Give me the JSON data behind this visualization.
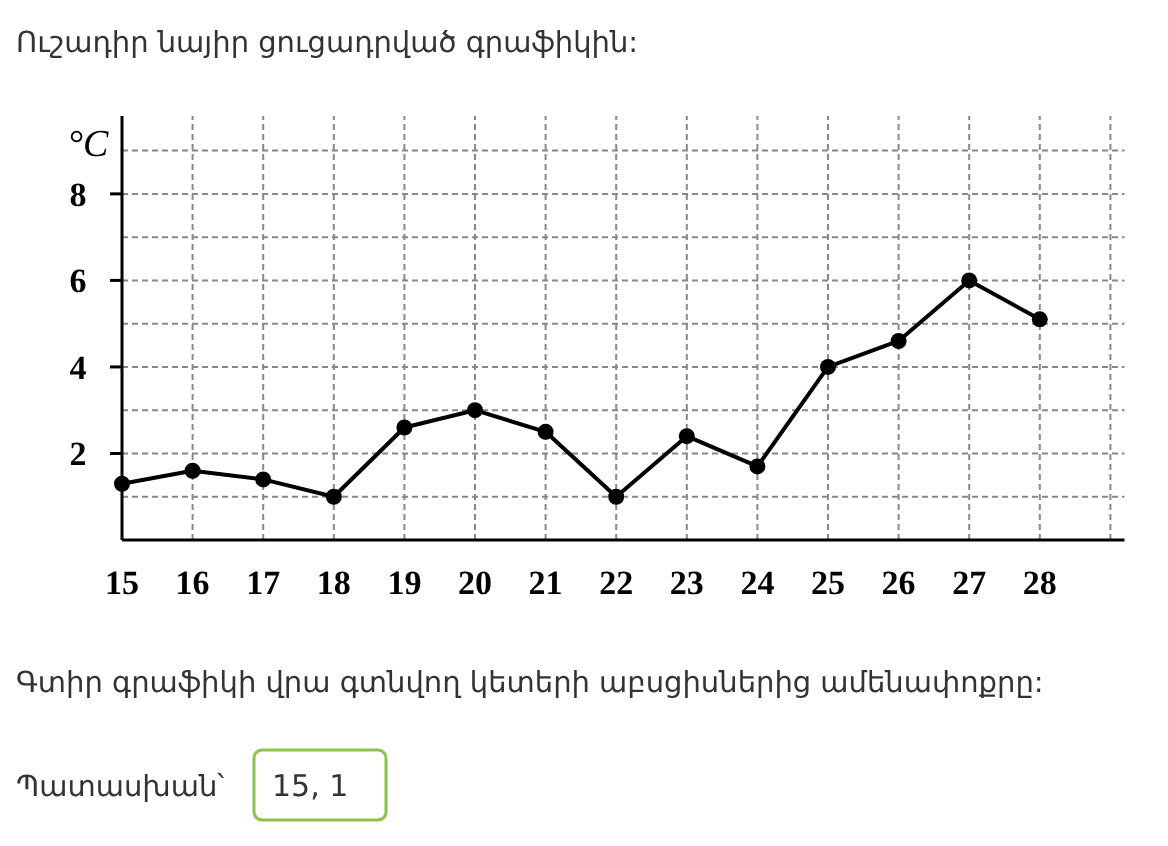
{
  "chart_data": {
    "type": "line",
    "title": "Ուշադիր նայիր ցուցադրված գրաֆիկին:",
    "ylabel": "°C",
    "x": [
      15,
      16,
      17,
      18,
      19,
      20,
      21,
      22,
      23,
      24,
      25,
      26,
      27,
      28
    ],
    "series": [
      {
        "color": "#000000",
        "values": [
          1.3,
          1.6,
          1.4,
          1,
          2.6,
          3,
          2.5,
          1,
          2.4,
          1.7,
          4,
          4.6,
          6,
          5.1
        ]
      }
    ],
    "xlim": [
      15,
      29.2
    ],
    "ylim": [
      0,
      9.8
    ],
    "xticks": [
      15,
      16,
      17,
      18,
      19,
      20,
      21,
      22,
      23,
      24,
      25,
      26,
      27,
      28,
      {
        "value": 29,
        "label": null
      }
    ],
    "yticks": [
      {
        "value": 1,
        "label": null
      },
      2,
      {
        "value": 3,
        "label": null
      },
      4,
      {
        "value": 5,
        "label": null
      },
      6,
      {
        "value": 7,
        "label": null
      },
      8,
      {
        "value": 9,
        "label": null
      }
    ],
    "grid": true,
    "marker": "circle",
    "line_style": "solid",
    "annotations": [
      "Գտիր գրաֆիկի վրա գտնվող կետերի աբսցիսներից ամենափոքրը:",
      "Պատասխան՝",
      "15, 1"
    ]
  }
}
